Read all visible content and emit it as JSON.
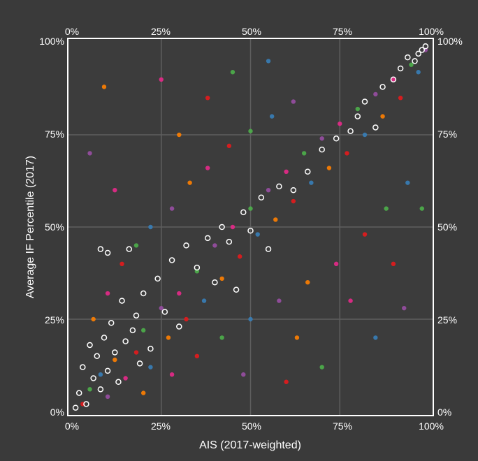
{
  "chart_data": {
    "type": "scatter",
    "title": "",
    "xlabel": "AIS (2017-weighted)",
    "ylabel": "Average IF Percentile (2017)",
    "xlim": [
      0,
      100
    ],
    "ylim": [
      0,
      100
    ],
    "x_ticks": [
      "0%",
      "25%",
      "50%",
      "75%",
      "100%"
    ],
    "y_ticks": [
      "0%",
      "25%",
      "50%",
      "75%",
      "100%"
    ],
    "grid": true,
    "legend": "none",
    "colors": {
      "background": "#3a3a3a",
      "plot_background": "#3c3c3c",
      "frame": "#ffffff",
      "grid": "#5e5e5e",
      "series": [
        "#e41a1c",
        "#4daf4a",
        "#377eb8",
        "#984ea3",
        "#ff7f00",
        "#e7298a"
      ]
    },
    "series": [
      {
        "point_style": "filled",
        "points": [
          [
            3,
            2
          ],
          [
            5,
            6
          ],
          [
            8,
            10
          ],
          [
            10,
            4
          ],
          [
            12,
            14
          ],
          [
            15,
            9
          ],
          [
            18,
            16
          ],
          [
            20,
            22
          ],
          [
            22,
            12
          ],
          [
            25,
            28
          ],
          [
            27,
            20
          ],
          [
            30,
            32
          ],
          [
            32,
            25
          ],
          [
            35,
            38
          ],
          [
            37,
            30
          ],
          [
            40,
            45
          ],
          [
            42,
            36
          ],
          [
            45,
            50
          ],
          [
            47,
            42
          ],
          [
            50,
            55
          ],
          [
            52,
            48
          ],
          [
            55,
            60
          ],
          [
            57,
            52
          ],
          [
            60,
            65
          ],
          [
            62,
            57
          ],
          [
            65,
            70
          ],
          [
            67,
            62
          ],
          [
            70,
            74
          ],
          [
            72,
            66
          ],
          [
            75,
            78
          ],
          [
            77,
            70
          ],
          [
            80,
            82
          ],
          [
            82,
            75
          ],
          [
            85,
            86
          ],
          [
            87,
            80
          ],
          [
            90,
            90
          ],
          [
            92,
            85
          ],
          [
            95,
            94
          ],
          [
            97,
            92
          ],
          [
            99,
            98
          ],
          [
            6,
            25
          ],
          [
            10,
            32
          ],
          [
            14,
            40
          ],
          [
            18,
            45
          ],
          [
            22,
            50
          ],
          [
            28,
            55
          ],
          [
            33,
            62
          ],
          [
            38,
            66
          ],
          [
            44,
            72
          ],
          [
            50,
            76
          ],
          [
            56,
            80
          ],
          [
            62,
            84
          ],
          [
            20,
            5
          ],
          [
            28,
            10
          ],
          [
            35,
            15
          ],
          [
            42,
            20
          ],
          [
            50,
            25
          ],
          [
            58,
            30
          ],
          [
            66,
            35
          ],
          [
            74,
            40
          ],
          [
            82,
            48
          ],
          [
            88,
            55
          ],
          [
            94,
            62
          ],
          [
            5,
            70
          ],
          [
            9,
            88
          ],
          [
            12,
            60
          ],
          [
            60,
            8
          ],
          [
            70,
            12
          ],
          [
            85,
            20
          ],
          [
            93,
            28
          ],
          [
            30,
            75
          ],
          [
            25,
            90
          ],
          [
            38,
            85
          ],
          [
            45,
            92
          ],
          [
            55,
            95
          ],
          [
            48,
            10
          ],
          [
            63,
            20
          ],
          [
            78,
            30
          ],
          [
            90,
            40
          ],
          [
            98,
            55
          ]
        ]
      },
      {
        "point_style": "open-circle",
        "points": [
          [
            1,
            1
          ],
          [
            2,
            5
          ],
          [
            3,
            12
          ],
          [
            4,
            2
          ],
          [
            5,
            18
          ],
          [
            6,
            9
          ],
          [
            7,
            15
          ],
          [
            8,
            6
          ],
          [
            9,
            20
          ],
          [
            10,
            11
          ],
          [
            11,
            24
          ],
          [
            12,
            16
          ],
          [
            13,
            8
          ],
          [
            14,
            30
          ],
          [
            15,
            19
          ],
          [
            16,
            44
          ],
          [
            17,
            22
          ],
          [
            18,
            26
          ],
          [
            19,
            13
          ],
          [
            20,
            32
          ],
          [
            22,
            17
          ],
          [
            24,
            36
          ],
          [
            26,
            27
          ],
          [
            28,
            41
          ],
          [
            30,
            23
          ],
          [
            32,
            45
          ],
          [
            35,
            39
          ],
          [
            38,
            47
          ],
          [
            40,
            35
          ],
          [
            42,
            50
          ],
          [
            44,
            46
          ],
          [
            46,
            33
          ],
          [
            48,
            54
          ],
          [
            50,
            49
          ],
          [
            53,
            58
          ],
          [
            55,
            44
          ],
          [
            58,
            61
          ],
          [
            62,
            60
          ],
          [
            66,
            65
          ],
          [
            70,
            71
          ],
          [
            74,
            74
          ],
          [
            78,
            76
          ],
          [
            80,
            80
          ],
          [
            82,
            84
          ],
          [
            85,
            77
          ],
          [
            87,
            88
          ],
          [
            90,
            90
          ],
          [
            92,
            93
          ],
          [
            94,
            96
          ],
          [
            96,
            95
          ],
          [
            97,
            97
          ],
          [
            98,
            98
          ],
          [
            99,
            99
          ],
          [
            8,
            44
          ],
          [
            10,
            43
          ]
        ]
      }
    ]
  }
}
